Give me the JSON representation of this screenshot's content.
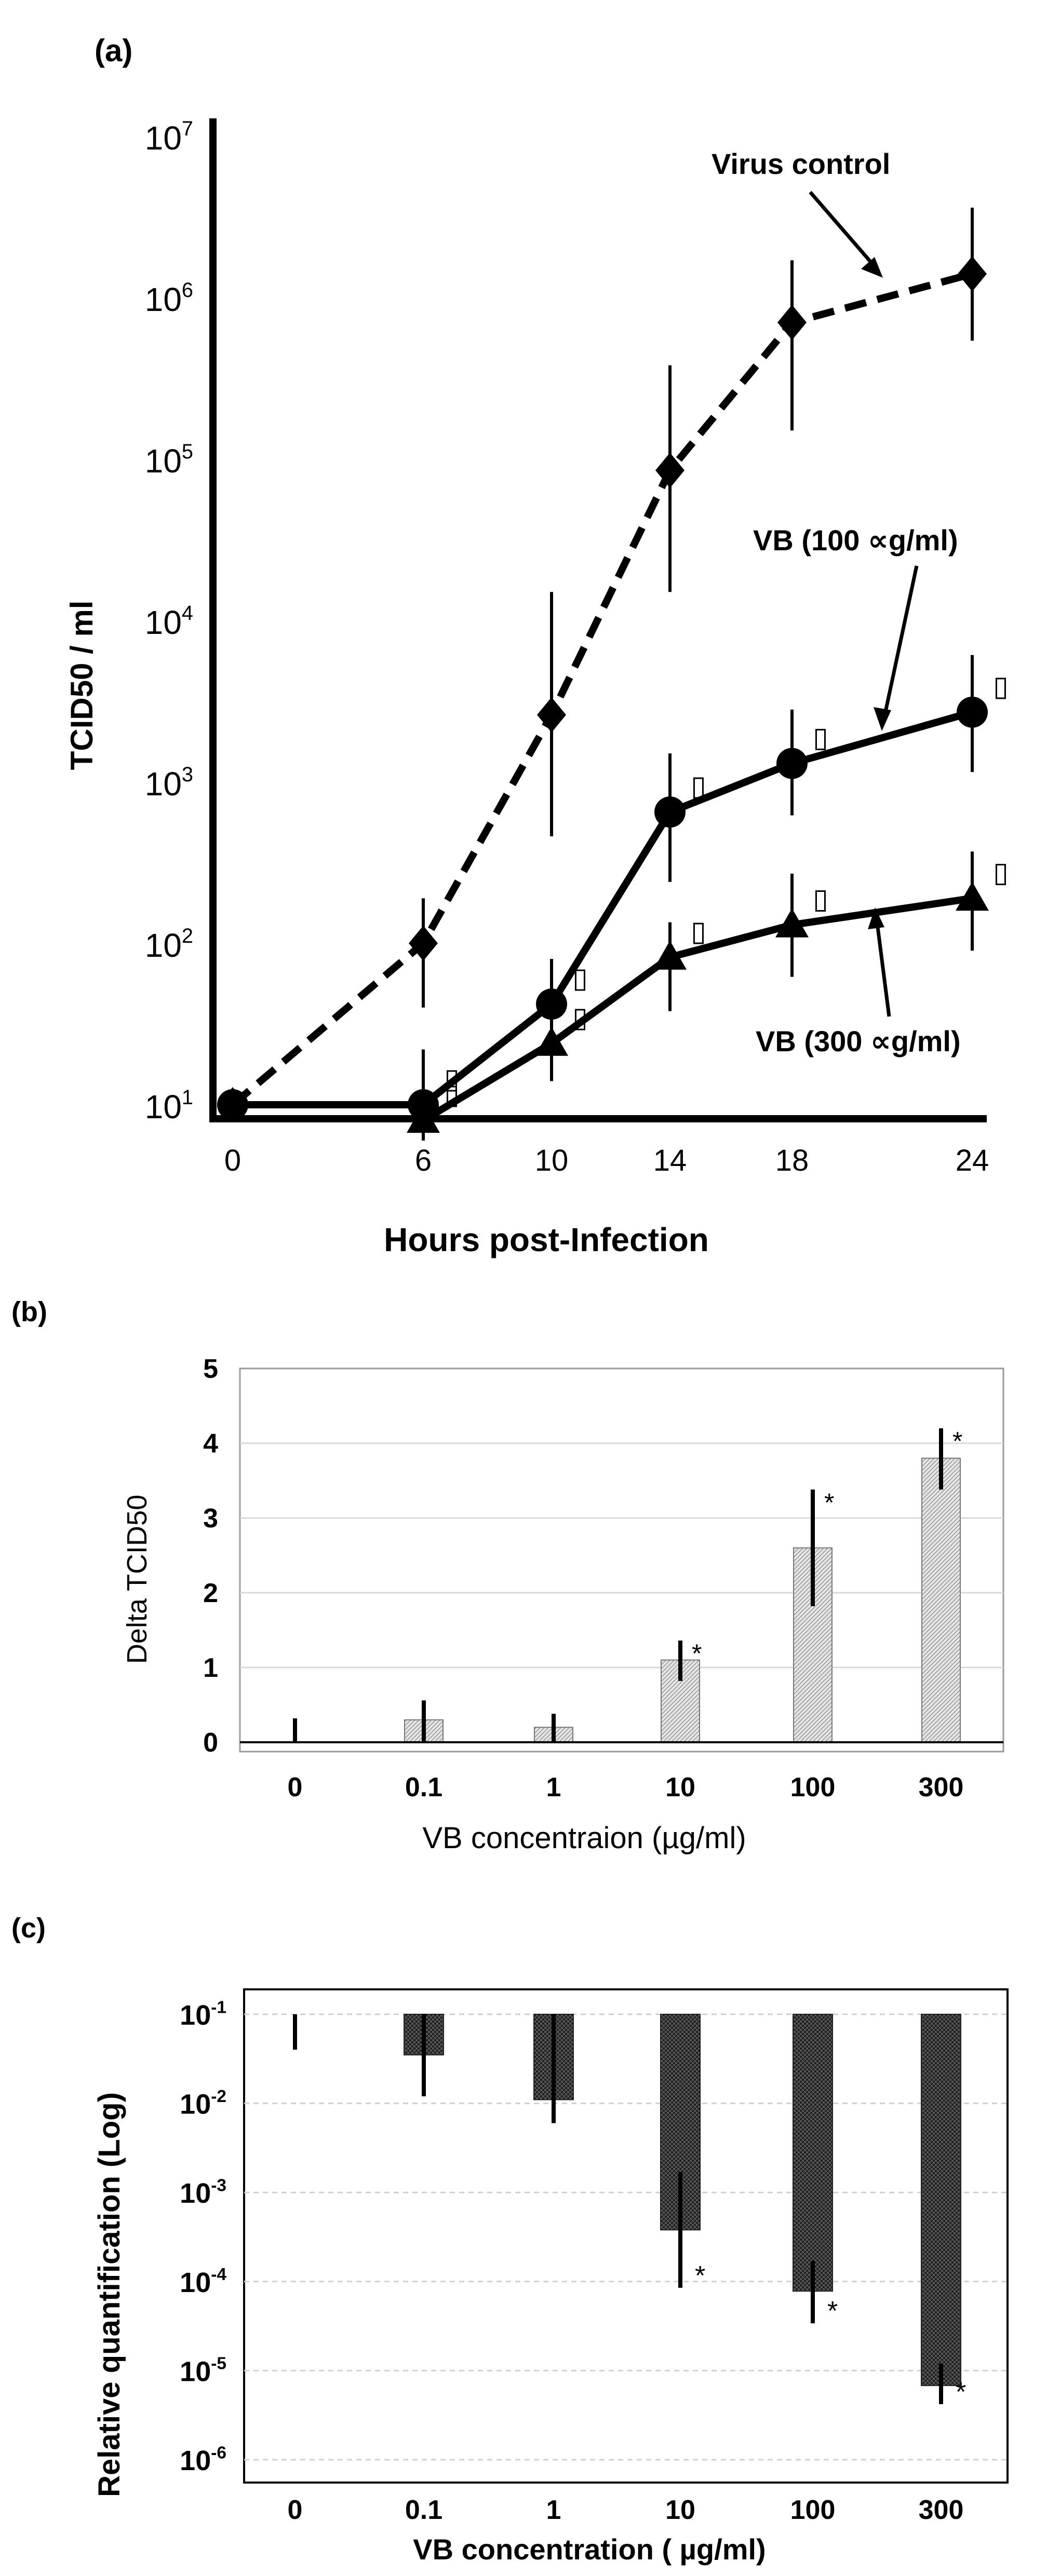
{
  "chart_data": [
    {
      "panel": "(a)",
      "type": "line",
      "yscale": "log",
      "ylabel": "TCID50 / ml",
      "xlabel": "Hours post-Infection",
      "xlim": [
        0,
        24
      ],
      "ylim": [
        10,
        10000000
      ],
      "x_ticks": [
        "0",
        "6",
        "10",
        "14",
        "18",
        "24"
      ],
      "y_ticks": [
        {
          "base": "10",
          "exp": "1"
        },
        {
          "base": "10",
          "exp": "2"
        },
        {
          "base": "10",
          "exp": "3"
        },
        {
          "base": "10",
          "exp": "4"
        },
        {
          "base": "10",
          "exp": "5"
        },
        {
          "base": "10",
          "exp": "6"
        },
        {
          "base": "10",
          "exp": "7"
        }
      ],
      "series": [
        {
          "name": "Virus control",
          "marker": "diamond",
          "dash": true,
          "points": [
            {
              "x": 0,
              "y": 10,
              "lo": 10,
              "hi": 10
            },
            {
              "x": 6,
              "y": 100,
              "lo": 40,
              "hi": 190
            },
            {
              "x": 10,
              "y": 2600,
              "lo": 460,
              "hi": 15000
            },
            {
              "x": 14,
              "y": 85000,
              "lo": 15000,
              "hi": 380000
            },
            {
              "x": 18,
              "y": 700000,
              "lo": 150000,
              "hi": 1700000
            },
            {
              "x": 24,
              "y": 1400000,
              "lo": 540000,
              "hi": 3600000
            }
          ]
        },
        {
          "name": "VB (100 ∝g/ml)",
          "marker": "circle",
          "dash": false,
          "points": [
            {
              "x": 0,
              "y": 10,
              "lo": 10,
              "hi": 10,
              "sig": ""
            },
            {
              "x": 6,
              "y": 10,
              "lo": 7,
              "hi": 22,
              "sig": "▯"
            },
            {
              "x": 10,
              "y": 42,
              "lo": 22,
              "hi": 80,
              "sig": "▯"
            },
            {
              "x": 14,
              "y": 650,
              "lo": 240,
              "hi": 1500,
              "sig": "▯"
            },
            {
              "x": 18,
              "y": 1300,
              "lo": 620,
              "hi": 2800,
              "sig": "▯"
            },
            {
              "x": 24,
              "y": 2700,
              "lo": 1150,
              "hi": 6100,
              "sig": "▯"
            }
          ]
        },
        {
          "name": "VB (300 ∝g/ml)",
          "marker": "triangle",
          "dash": false,
          "points": [
            {
              "x": 6,
              "y": 8,
              "lo": 6,
              "hi": 12,
              "sig": "▯"
            },
            {
              "x": 10,
              "y": 24,
              "lo": 14,
              "hi": 38,
              "sig": "▯"
            },
            {
              "x": 14,
              "y": 82,
              "lo": 38,
              "hi": 135,
              "sig": "▯"
            },
            {
              "x": 18,
              "y": 130,
              "lo": 62,
              "hi": 270,
              "sig": "▯"
            },
            {
              "x": 24,
              "y": 190,
              "lo": 90,
              "hi": 370,
              "sig": "▯"
            }
          ]
        }
      ],
      "annotations": [
        "Virus control",
        "VB (100 ∝g/ml)",
        "VB (300 ∝g/ml)"
      ]
    },
    {
      "panel": "(b)",
      "type": "bar",
      "ylabel": "Delta TCID50",
      "xlabel": "VB concentraion (µg/ml)",
      "ylim": [
        0,
        5
      ],
      "y_ticks": [
        "0",
        "1",
        "2",
        "3",
        "4",
        "5"
      ],
      "categories": [
        "0",
        "0.1",
        "1",
        "10",
        "100",
        "300"
      ],
      "values": [
        0,
        0.3,
        0.2,
        1.1,
        2.6,
        3.8
      ],
      "err_lo": [
        0,
        0,
        0,
        0.82,
        1.82,
        3.38
      ],
      "err_hi": [
        0.32,
        0.56,
        0.38,
        1.36,
        3.38,
        4.2
      ],
      "sig": [
        "",
        "",
        "",
        "*",
        "*",
        "*"
      ],
      "grid": true
    },
    {
      "panel": "(c)",
      "type": "bar",
      "yscale": "log",
      "ylabel": "Relative quantification (Log)",
      "xlabel": "VB concentration ( µg/ml)",
      "ylim": [
        1e-06,
        0.1
      ],
      "y_ticks": [
        {
          "base": "10",
          "exp": "-1"
        },
        {
          "base": "10",
          "exp": "-2"
        },
        {
          "base": "10",
          "exp": "-3"
        },
        {
          "base": "10",
          "exp": "-4"
        },
        {
          "base": "10",
          "exp": "-5"
        },
        {
          "base": "10",
          "exp": "-6"
        }
      ],
      "categories": [
        "0",
        "0.1",
        "1",
        "10",
        "100",
        "300"
      ],
      "values": [
        0.1,
        0.035,
        0.011,
        0.00038,
        7.8e-05,
        6.8e-06
      ],
      "err_lo": [
        0.04,
        0.012,
        0.006,
        8.5e-05,
        3.4e-05,
        4.2e-06
      ],
      "err_hi": [
        0.1,
        0.1,
        0.1,
        0.0017,
        0.00017,
        1.2e-05
      ],
      "sig": [
        "",
        "",
        "",
        "*",
        "*",
        "*"
      ],
      "grid": true
    }
  ]
}
